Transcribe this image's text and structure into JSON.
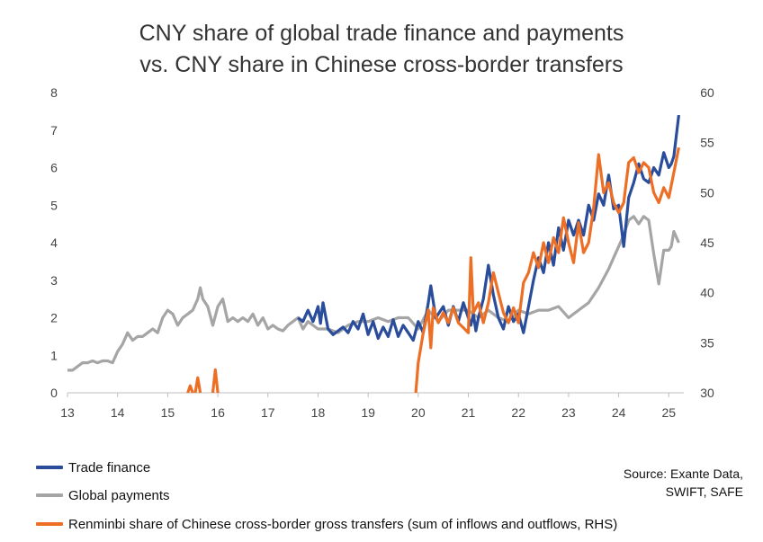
{
  "title_line1": "CNY share of global trade finance and payments",
  "title_line2": "vs. CNY share in Chinese cross-border transfers",
  "source_line1": "Source: Exante Data,",
  "source_line2": "SWIFT, SAFE",
  "colors": {
    "trade": "#2a4d9b",
    "global": "#a5a5a5",
    "rmb": "#ed6f26",
    "axis": "#bfbfbf"
  },
  "chart_data": {
    "type": "line",
    "title": "CNY share of global trade finance and payments vs. CNY share in Chinese cross-border transfers",
    "x_ticks": [
      "13",
      "14",
      "15",
      "16",
      "17",
      "18",
      "19",
      "20",
      "21",
      "22",
      "23",
      "24",
      "25"
    ],
    "x_range": [
      13,
      25.3
    ],
    "y_left": {
      "range": [
        0,
        8
      ],
      "ticks": [
        "0",
        "1",
        "2",
        "3",
        "4",
        "5",
        "6",
        "7",
        "8"
      ]
    },
    "y_right": {
      "range": [
        30,
        60
      ],
      "ticks": [
        "30",
        "35",
        "40",
        "45",
        "50",
        "55",
        "60"
      ]
    },
    "grid": false,
    "legend_position": "bottom-left",
    "series": [
      {
        "name": "Trade finance",
        "axis": "left",
        "points": [
          [
            17.6,
            2.0
          ],
          [
            17.7,
            1.9
          ],
          [
            17.8,
            2.2
          ],
          [
            17.9,
            1.9
          ],
          [
            18.0,
            2.3
          ],
          [
            18.05,
            1.85
          ],
          [
            18.1,
            2.4
          ],
          [
            18.2,
            1.7
          ],
          [
            18.3,
            1.55
          ],
          [
            18.4,
            1.65
          ],
          [
            18.5,
            1.75
          ],
          [
            18.6,
            1.6
          ],
          [
            18.7,
            1.9
          ],
          [
            18.8,
            1.7
          ],
          [
            18.9,
            2.1
          ],
          [
            19.0,
            1.55
          ],
          [
            19.1,
            1.9
          ],
          [
            19.2,
            1.45
          ],
          [
            19.3,
            1.75
          ],
          [
            19.4,
            1.5
          ],
          [
            19.5,
            1.95
          ],
          [
            19.6,
            1.5
          ],
          [
            19.7,
            1.8
          ],
          [
            19.8,
            1.6
          ],
          [
            19.9,
            1.4
          ],
          [
            20.0,
            1.9
          ],
          [
            20.1,
            1.6
          ],
          [
            20.2,
            2.4
          ],
          [
            20.25,
            2.85
          ],
          [
            20.35,
            2.0
          ],
          [
            20.5,
            2.3
          ],
          [
            20.6,
            1.8
          ],
          [
            20.7,
            2.3
          ],
          [
            20.8,
            1.9
          ],
          [
            20.9,
            2.4
          ],
          [
            21.0,
            2.0
          ],
          [
            21.05,
            1.8
          ],
          [
            21.1,
            2.1
          ],
          [
            21.15,
            1.65
          ],
          [
            21.2,
            2.0
          ],
          [
            21.3,
            2.5
          ],
          [
            21.4,
            3.4
          ],
          [
            21.5,
            2.6
          ],
          [
            21.6,
            2.0
          ],
          [
            21.7,
            1.7
          ],
          [
            21.8,
            2.3
          ],
          [
            21.9,
            1.9
          ],
          [
            22.0,
            2.1
          ],
          [
            22.1,
            1.6
          ],
          [
            22.2,
            2.3
          ],
          [
            22.3,
            3.0
          ],
          [
            22.4,
            3.6
          ],
          [
            22.5,
            3.2
          ],
          [
            22.6,
            4.0
          ],
          [
            22.7,
            3.4
          ],
          [
            22.8,
            4.4
          ],
          [
            22.9,
            3.8
          ],
          [
            23.0,
            4.6
          ],
          [
            23.1,
            4.2
          ],
          [
            23.2,
            4.6
          ],
          [
            23.3,
            4.2
          ],
          [
            23.4,
            5.0
          ],
          [
            23.5,
            4.6
          ],
          [
            23.6,
            5.3
          ],
          [
            23.7,
            5.0
          ],
          [
            23.8,
            5.8
          ],
          [
            23.9,
            4.9
          ],
          [
            24.0,
            5.0
          ],
          [
            24.1,
            3.9
          ],
          [
            24.2,
            5.2
          ],
          [
            24.3,
            5.6
          ],
          [
            24.4,
            6.1
          ],
          [
            24.5,
            5.7
          ],
          [
            24.6,
            5.6
          ],
          [
            24.7,
            6.0
          ],
          [
            24.8,
            5.8
          ],
          [
            24.9,
            6.4
          ],
          [
            25.0,
            6.0
          ],
          [
            25.05,
            6.1
          ],
          [
            25.1,
            6.3
          ],
          [
            25.2,
            7.4
          ]
        ]
      },
      {
        "name": "Global payments",
        "axis": "left",
        "points": [
          [
            13.0,
            0.6
          ],
          [
            13.1,
            0.6
          ],
          [
            13.2,
            0.7
          ],
          [
            13.3,
            0.8
          ],
          [
            13.4,
            0.8
          ],
          [
            13.5,
            0.85
          ],
          [
            13.6,
            0.8
          ],
          [
            13.7,
            0.85
          ],
          [
            13.8,
            0.85
          ],
          [
            13.9,
            0.8
          ],
          [
            14.0,
            1.1
          ],
          [
            14.1,
            1.3
          ],
          [
            14.2,
            1.6
          ],
          [
            14.3,
            1.4
          ],
          [
            14.4,
            1.5
          ],
          [
            14.5,
            1.5
          ],
          [
            14.6,
            1.6
          ],
          [
            14.7,
            1.7
          ],
          [
            14.8,
            1.6
          ],
          [
            14.9,
            2.0
          ],
          [
            15.0,
            2.2
          ],
          [
            15.1,
            2.1
          ],
          [
            15.2,
            1.8
          ],
          [
            15.3,
            2.0
          ],
          [
            15.4,
            2.1
          ],
          [
            15.5,
            2.2
          ],
          [
            15.6,
            2.5
          ],
          [
            15.65,
            2.8
          ],
          [
            15.7,
            2.5
          ],
          [
            15.8,
            2.3
          ],
          [
            15.9,
            1.8
          ],
          [
            16.0,
            2.3
          ],
          [
            16.1,
            2.5
          ],
          [
            16.2,
            1.9
          ],
          [
            16.3,
            2.0
          ],
          [
            16.4,
            1.9
          ],
          [
            16.5,
            2.0
          ],
          [
            16.6,
            1.9
          ],
          [
            16.7,
            2.1
          ],
          [
            16.8,
            1.8
          ],
          [
            16.9,
            2.0
          ],
          [
            17.0,
            1.7
          ],
          [
            17.1,
            1.8
          ],
          [
            17.2,
            1.7
          ],
          [
            17.3,
            1.65
          ],
          [
            17.4,
            1.8
          ],
          [
            17.5,
            1.9
          ],
          [
            17.6,
            2.0
          ],
          [
            17.7,
            1.7
          ],
          [
            17.8,
            1.9
          ],
          [
            17.9,
            1.8
          ],
          [
            18.0,
            1.7
          ],
          [
            18.2,
            1.7
          ],
          [
            18.4,
            1.6
          ],
          [
            18.6,
            1.8
          ],
          [
            18.8,
            1.9
          ],
          [
            19.0,
            1.9
          ],
          [
            19.2,
            2.0
          ],
          [
            19.4,
            1.9
          ],
          [
            19.6,
            2.0
          ],
          [
            19.8,
            2.0
          ],
          [
            20.0,
            1.7
          ],
          [
            20.2,
            2.2
          ],
          [
            20.4,
            1.9
          ],
          [
            20.6,
            2.2
          ],
          [
            20.8,
            2.2
          ],
          [
            21.0,
            2.2
          ],
          [
            21.2,
            2.0
          ],
          [
            21.4,
            2.2
          ],
          [
            21.6,
            2.0
          ],
          [
            21.8,
            1.9
          ],
          [
            22.0,
            2.2
          ],
          [
            22.2,
            2.1
          ],
          [
            22.4,
            2.2
          ],
          [
            22.6,
            2.2
          ],
          [
            22.8,
            2.3
          ],
          [
            23.0,
            2.0
          ],
          [
            23.2,
            2.2
          ],
          [
            23.4,
            2.4
          ],
          [
            23.6,
            2.8
          ],
          [
            23.8,
            3.3
          ],
          [
            23.9,
            3.6
          ],
          [
            24.0,
            3.9
          ],
          [
            24.1,
            4.2
          ],
          [
            24.2,
            4.6
          ],
          [
            24.3,
            4.7
          ],
          [
            24.4,
            4.5
          ],
          [
            24.5,
            4.7
          ],
          [
            24.6,
            4.6
          ],
          [
            24.7,
            3.7
          ],
          [
            24.8,
            2.9
          ],
          [
            24.9,
            3.8
          ],
          [
            25.0,
            3.8
          ],
          [
            25.05,
            3.9
          ],
          [
            25.1,
            4.3
          ],
          [
            25.2,
            4.0
          ]
        ]
      },
      {
        "name": "Renminbi share of Chinese cross-border gross transfers (sum of inflows and outflows, RHS)",
        "axis": "right",
        "segments": [
          [
            [
              15.4,
              30.0
            ],
            [
              15.45,
              30.7
            ],
            [
              15.5,
              30.0
            ]
          ],
          [
            [
              15.55,
              30.0
            ],
            [
              15.6,
              31.5
            ],
            [
              15.65,
              30.0
            ]
          ],
          [
            [
              15.9,
              30.0
            ],
            [
              15.95,
              32.3
            ],
            [
              16.0,
              30.0
            ]
          ],
          [
            [
              19.95,
              30.0
            ],
            [
              20.0,
              33.0
            ],
            [
              20.1,
              36.0
            ],
            [
              20.2,
              38.3
            ],
            [
              20.25,
              34.5
            ],
            [
              20.3,
              38.5
            ],
            [
              20.4,
              37.0
            ],
            [
              20.5,
              38.0
            ],
            [
              20.6,
              37.0
            ],
            [
              20.7,
              38.5
            ],
            [
              20.8,
              37.0
            ],
            [
              20.9,
              36.5
            ],
            [
              21.0,
              36.0
            ],
            [
              21.05,
              43.5
            ],
            [
              21.1,
              38.0
            ],
            [
              21.2,
              39.0
            ],
            [
              21.3,
              37.0
            ],
            [
              21.4,
              39.0
            ],
            [
              21.5,
              42.0
            ],
            [
              21.6,
              40.0
            ],
            [
              21.7,
              38.0
            ],
            [
              21.8,
              37.0
            ],
            [
              21.9,
              38.5
            ],
            [
              22.0,
              37.0
            ],
            [
              22.1,
              41.0
            ],
            [
              22.2,
              42.0
            ],
            [
              22.3,
              44.0
            ],
            [
              22.4,
              42.5
            ],
            [
              22.5,
              45.0
            ],
            [
              22.6,
              43.0
            ],
            [
              22.7,
              45.5
            ],
            [
              22.8,
              44.0
            ],
            [
              22.9,
              47.5
            ],
            [
              23.0,
              45.0
            ],
            [
              23.1,
              43.0
            ],
            [
              23.2,
              47.0
            ],
            [
              23.3,
              44.0
            ],
            [
              23.4,
              45.0
            ],
            [
              23.5,
              48.5
            ],
            [
              23.6,
              53.8
            ],
            [
              23.7,
              50.0
            ],
            [
              23.8,
              51.0
            ],
            [
              23.9,
              49.0
            ],
            [
              24.0,
              48.0
            ],
            [
              24.1,
              49.0
            ],
            [
              24.2,
              53.0
            ],
            [
              24.3,
              53.5
            ],
            [
              24.4,
              52.0
            ],
            [
              24.5,
              53.0
            ],
            [
              24.6,
              52.5
            ],
            [
              24.7,
              50.0
            ],
            [
              24.8,
              49.0
            ],
            [
              24.9,
              50.5
            ],
            [
              25.0,
              49.5
            ],
            [
              25.1,
              52.0
            ],
            [
              25.2,
              54.5
            ]
          ]
        ]
      }
    ]
  }
}
